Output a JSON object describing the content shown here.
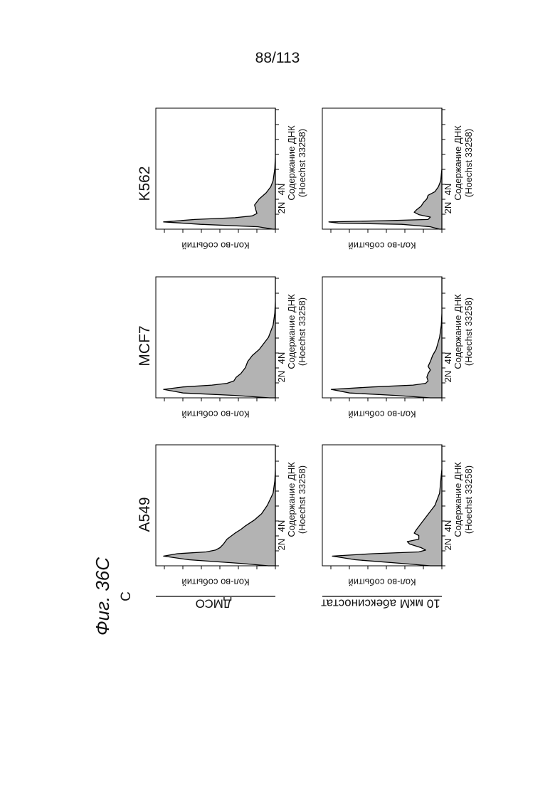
{
  "page_number": "88/113",
  "figure": {
    "label": "Фиг. 36С",
    "panel_letter": "С",
    "row_labels": [
      "ДМСО",
      "10 мкМ абексиностат"
    ],
    "column_labels": [
      "A549",
      "MCF7",
      "K562"
    ],
    "ylabel": "Кол-во событий",
    "xlabel_line1": "Содержание ДНК",
    "xlabel_line2": "(Hoechst 33258)",
    "tick_2n": "2N",
    "tick_4n": "4N"
  },
  "colors": {
    "fill": "#b3b3b3",
    "stroke": "#000000"
  },
  "chart_data": [
    {
      "type": "area",
      "cell_line": "A549",
      "treatment": "ДМСО",
      "x": [
        0,
        0.02,
        0.05,
        0.08,
        0.1,
        0.115,
        0.13,
        0.15,
        0.18,
        0.22,
        0.27,
        0.3,
        0.33,
        0.38,
        0.43,
        0.5,
        0.6,
        0.7,
        0.8,
        0.9,
        1.0
      ],
      "values": [
        0.06,
        0.3,
        0.75,
        0.97,
        0.85,
        0.6,
        0.52,
        0.48,
        0.45,
        0.42,
        0.35,
        0.3,
        0.26,
        0.18,
        0.12,
        0.07,
        0.02,
        0.005,
        0,
        0,
        0
      ]
    },
    {
      "type": "area",
      "cell_line": "MCF7",
      "treatment": "ДМСО",
      "x": [
        0,
        0.02,
        0.04,
        0.07,
        0.09,
        0.105,
        0.12,
        0.14,
        0.17,
        0.2,
        0.25,
        0.3,
        0.35,
        0.4,
        0.45,
        0.5,
        0.6,
        0.7,
        0.8,
        0.9,
        1.0
      ],
      "values": [
        0.05,
        0.35,
        0.8,
        0.97,
        0.8,
        0.55,
        0.42,
        0.36,
        0.34,
        0.3,
        0.26,
        0.24,
        0.2,
        0.14,
        0.1,
        0.06,
        0.02,
        0.005,
        0,
        0,
        0
      ]
    },
    {
      "type": "area",
      "cell_line": "K562",
      "treatment": "ДМСО",
      "x": [
        0,
        0.02,
        0.04,
        0.06,
        0.08,
        0.095,
        0.11,
        0.13,
        0.16,
        0.2,
        0.25,
        0.3,
        0.35,
        0.4,
        0.5,
        0.6,
        0.7,
        0.8,
        0.9,
        1.0
      ],
      "values": [
        0.02,
        0.15,
        0.65,
        0.97,
        0.7,
        0.35,
        0.2,
        0.16,
        0.17,
        0.18,
        0.14,
        0.08,
        0.04,
        0.02,
        0.005,
        0,
        0,
        0,
        0,
        0
      ]
    },
    {
      "type": "area",
      "cell_line": "A549",
      "treatment": "10 мкМ абексиностат",
      "x": [
        0,
        0.02,
        0.05,
        0.08,
        0.1,
        0.115,
        0.13,
        0.15,
        0.18,
        0.2,
        0.22,
        0.25,
        0.27,
        0.3,
        0.35,
        0.4,
        0.45,
        0.5,
        0.6,
        0.7,
        0.8,
        0.9,
        1.0
      ],
      "values": [
        0.1,
        0.35,
        0.75,
        0.95,
        0.6,
        0.2,
        0.14,
        0.18,
        0.28,
        0.3,
        0.2,
        0.2,
        0.24,
        0.22,
        0.18,
        0.14,
        0.1,
        0.06,
        0.02,
        0.01,
        0,
        0,
        0
      ]
    },
    {
      "type": "area",
      "cell_line": "MCF7",
      "treatment": "10 мкМ абексиностат",
      "x": [
        0,
        0.02,
        0.04,
        0.07,
        0.09,
        0.105,
        0.12,
        0.14,
        0.17,
        0.2,
        0.23,
        0.26,
        0.3,
        0.35,
        0.4,
        0.5,
        0.6,
        0.7,
        0.8,
        0.9,
        1.0
      ],
      "values": [
        0.1,
        0.4,
        0.8,
        0.96,
        0.6,
        0.25,
        0.14,
        0.12,
        0.13,
        0.12,
        0.1,
        0.12,
        0.1,
        0.08,
        0.05,
        0.02,
        0.005,
        0,
        0,
        0,
        0
      ]
    },
    {
      "type": "area",
      "cell_line": "K562",
      "treatment": "10 мкМ абексиностат",
      "x": [
        0,
        0.02,
        0.04,
        0.05,
        0.06,
        0.07,
        0.08,
        0.1,
        0.12,
        0.14,
        0.16,
        0.19,
        0.22,
        0.25,
        0.28,
        0.31,
        0.35,
        0.4,
        0.5,
        0.6,
        0.7,
        0.8,
        0.9,
        1.0
      ],
      "values": [
        0.02,
        0.1,
        0.35,
        0.9,
        0.98,
        0.5,
        0.12,
        0.1,
        0.2,
        0.24,
        0.22,
        0.18,
        0.16,
        0.13,
        0.12,
        0.06,
        0.03,
        0.01,
        0,
        0,
        0,
        0,
        0,
        0
      ]
    }
  ]
}
